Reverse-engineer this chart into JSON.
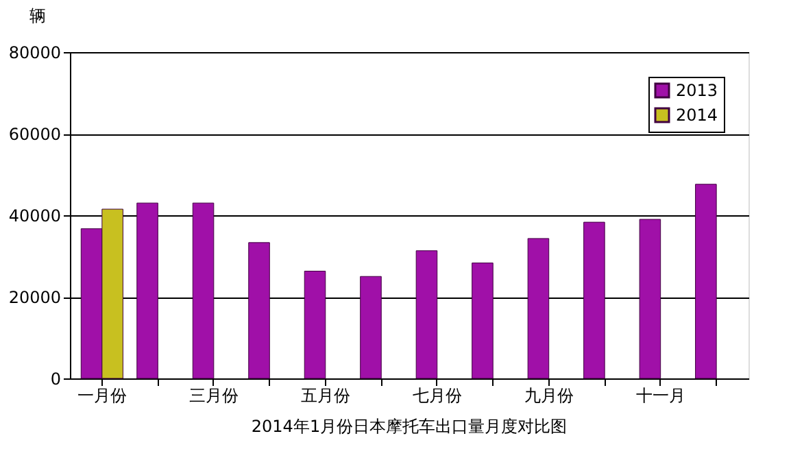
{
  "chart_data": {
    "type": "bar",
    "title": "2014年1月份日本摩托车出口量月度对比图",
    "ylabel": "辆",
    "categories": [
      "一月份",
      null,
      "三月份",
      null,
      "五月份",
      null,
      "七月份",
      null,
      "九月份",
      null,
      "十一月",
      null
    ],
    "series": [
      {
        "name": "2013",
        "color": "#a010a8",
        "values": [
          36700,
          43000,
          43000,
          33300,
          26300,
          25000,
          31300,
          28300,
          34300,
          38300,
          39000,
          47600
        ]
      },
      {
        "name": "2014",
        "color": "#c8c020",
        "values": [
          41500,
          null,
          null,
          null,
          null,
          null,
          null,
          null,
          null,
          null,
          null,
          null
        ]
      }
    ],
    "ylim": [
      0,
      80000
    ],
    "yticks": [
      0,
      20000,
      40000,
      60000,
      80000
    ],
    "grid": "y",
    "legend": "top right"
  }
}
